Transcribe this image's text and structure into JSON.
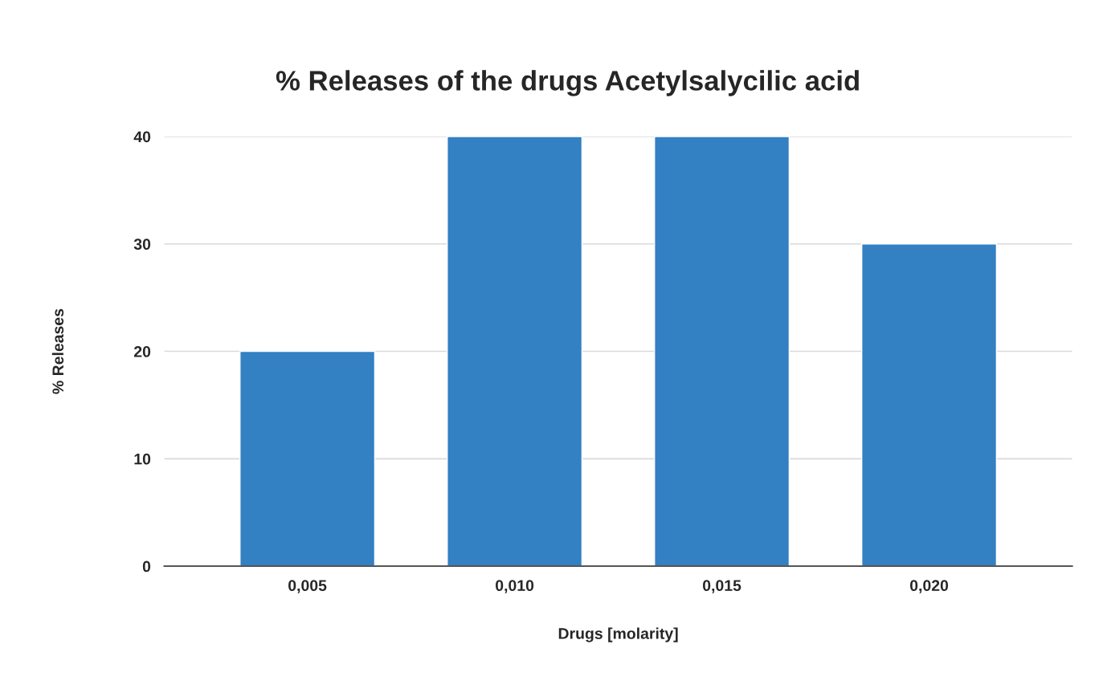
{
  "chart_data": {
    "type": "bar",
    "title": "% Releases of the drugs Acetylsalycilic acid",
    "xlabel": "Drugs [molarity]",
    "ylabel": "% Releases",
    "categories": [
      "0,005",
      "0,010",
      "0,015",
      "0,020"
    ],
    "values": [
      20,
      40,
      40,
      30
    ],
    "color": "#3380c3",
    "ylim": [
      0,
      40
    ],
    "yticks": [
      0,
      10,
      20,
      30,
      40
    ],
    "grid": "y"
  }
}
